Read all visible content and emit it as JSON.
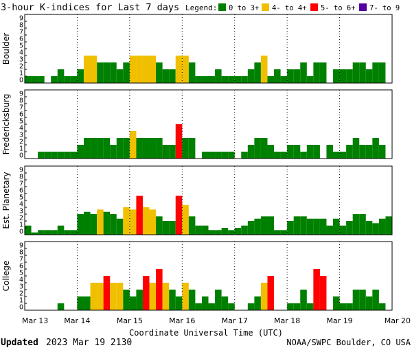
{
  "chart_data": {
    "type": "bar",
    "title": "3-hour K-indices for Last 7 days",
    "legend": {
      "label": "Legend:",
      "placement": "top-right",
      "entries": [
        {
          "text": "0 to 3+",
          "color": "#008000"
        },
        {
          "text": "4- to 4+",
          "color": "#F0C000"
        },
        {
          "text": "5- to 6+",
          "color": "#FF0000"
        },
        {
          "text": "7- to 9",
          "color": "#5000A0"
        }
      ]
    },
    "xlabel": "Coordinate Universal Time (UTC)",
    "x_tick_labels": [
      "Mar 13",
      "Mar 14",
      "Mar 15",
      "Mar 16",
      "Mar 17",
      "Mar 18",
      "Mar 19",
      "Mar 20"
    ],
    "y_tick_labels": [
      "0",
      "1",
      "2",
      "3",
      "4",
      "5",
      "6",
      "7",
      "8",
      "9"
    ],
    "ylim": [
      0,
      9
    ],
    "grid": true,
    "bins_per_day": 8,
    "panels": [
      {
        "name": "Boulder",
        "values": [
          1,
          1,
          1,
          0,
          1,
          2,
          1,
          1,
          2,
          4,
          4,
          3,
          3,
          3,
          2,
          3,
          4,
          4,
          4,
          4,
          3,
          2,
          2,
          4,
          4,
          3,
          1,
          1,
          1,
          2,
          1,
          1,
          1,
          1,
          2,
          3,
          4,
          1,
          2,
          1,
          2,
          2,
          3,
          1,
          3,
          3,
          0,
          2,
          2,
          2,
          3,
          3,
          2,
          3,
          3,
          0
        ]
      },
      {
        "name": "Fredericksburg",
        "values": [
          0,
          0,
          1,
          1,
          1,
          1,
          1,
          1,
          2,
          3,
          3,
          3,
          3,
          2,
          3,
          3,
          4,
          3,
          3,
          3,
          3,
          2,
          2,
          5,
          3,
          3,
          0,
          1,
          1,
          1,
          1,
          1,
          0,
          1,
          2,
          3,
          3,
          2,
          1,
          1,
          2,
          2,
          1,
          2,
          2,
          0,
          2,
          1,
          1,
          2,
          3,
          2,
          2,
          3,
          2,
          0
        ]
      },
      {
        "name": "Est. Planetary",
        "values": [
          1.33,
          0.33,
          0.67,
          0.67,
          0.67,
          1.33,
          0.67,
          0.67,
          3,
          3.33,
          3,
          3.67,
          3.33,
          3,
          2.33,
          4,
          3.67,
          5.67,
          4,
          3.67,
          2.67,
          2,
          2,
          5.67,
          4.33,
          2.67,
          1.33,
          1.33,
          0.67,
          0.67,
          1,
          0.67,
          1,
          1.33,
          2,
          2.33,
          2.67,
          2.67,
          0.67,
          0.67,
          2,
          2.67,
          2.67,
          2.33,
          2.33,
          2.33,
          1.33,
          2.33,
          1.33,
          2,
          3,
          3,
          2,
          1.67,
          2.33,
          2.67
        ]
      },
      {
        "name": "College",
        "values": [
          0,
          0,
          0,
          0,
          0,
          1,
          0,
          0,
          2,
          2,
          4,
          4,
          5,
          4,
          4,
          3,
          2,
          3,
          5,
          4,
          6,
          4,
          3,
          2,
          4,
          3,
          1,
          2,
          1,
          3,
          2,
          1,
          0,
          0,
          1,
          2,
          4,
          5,
          0,
          0,
          1,
          1,
          3,
          1,
          6,
          5,
          0,
          2,
          1,
          1,
          3,
          3,
          2,
          3,
          1,
          0
        ]
      }
    ]
  },
  "footer": {
    "updated_label": "Updated",
    "updated_value": "2023 Mar 19 2130",
    "source": "NOAA/SWPC Boulder, CO USA"
  }
}
